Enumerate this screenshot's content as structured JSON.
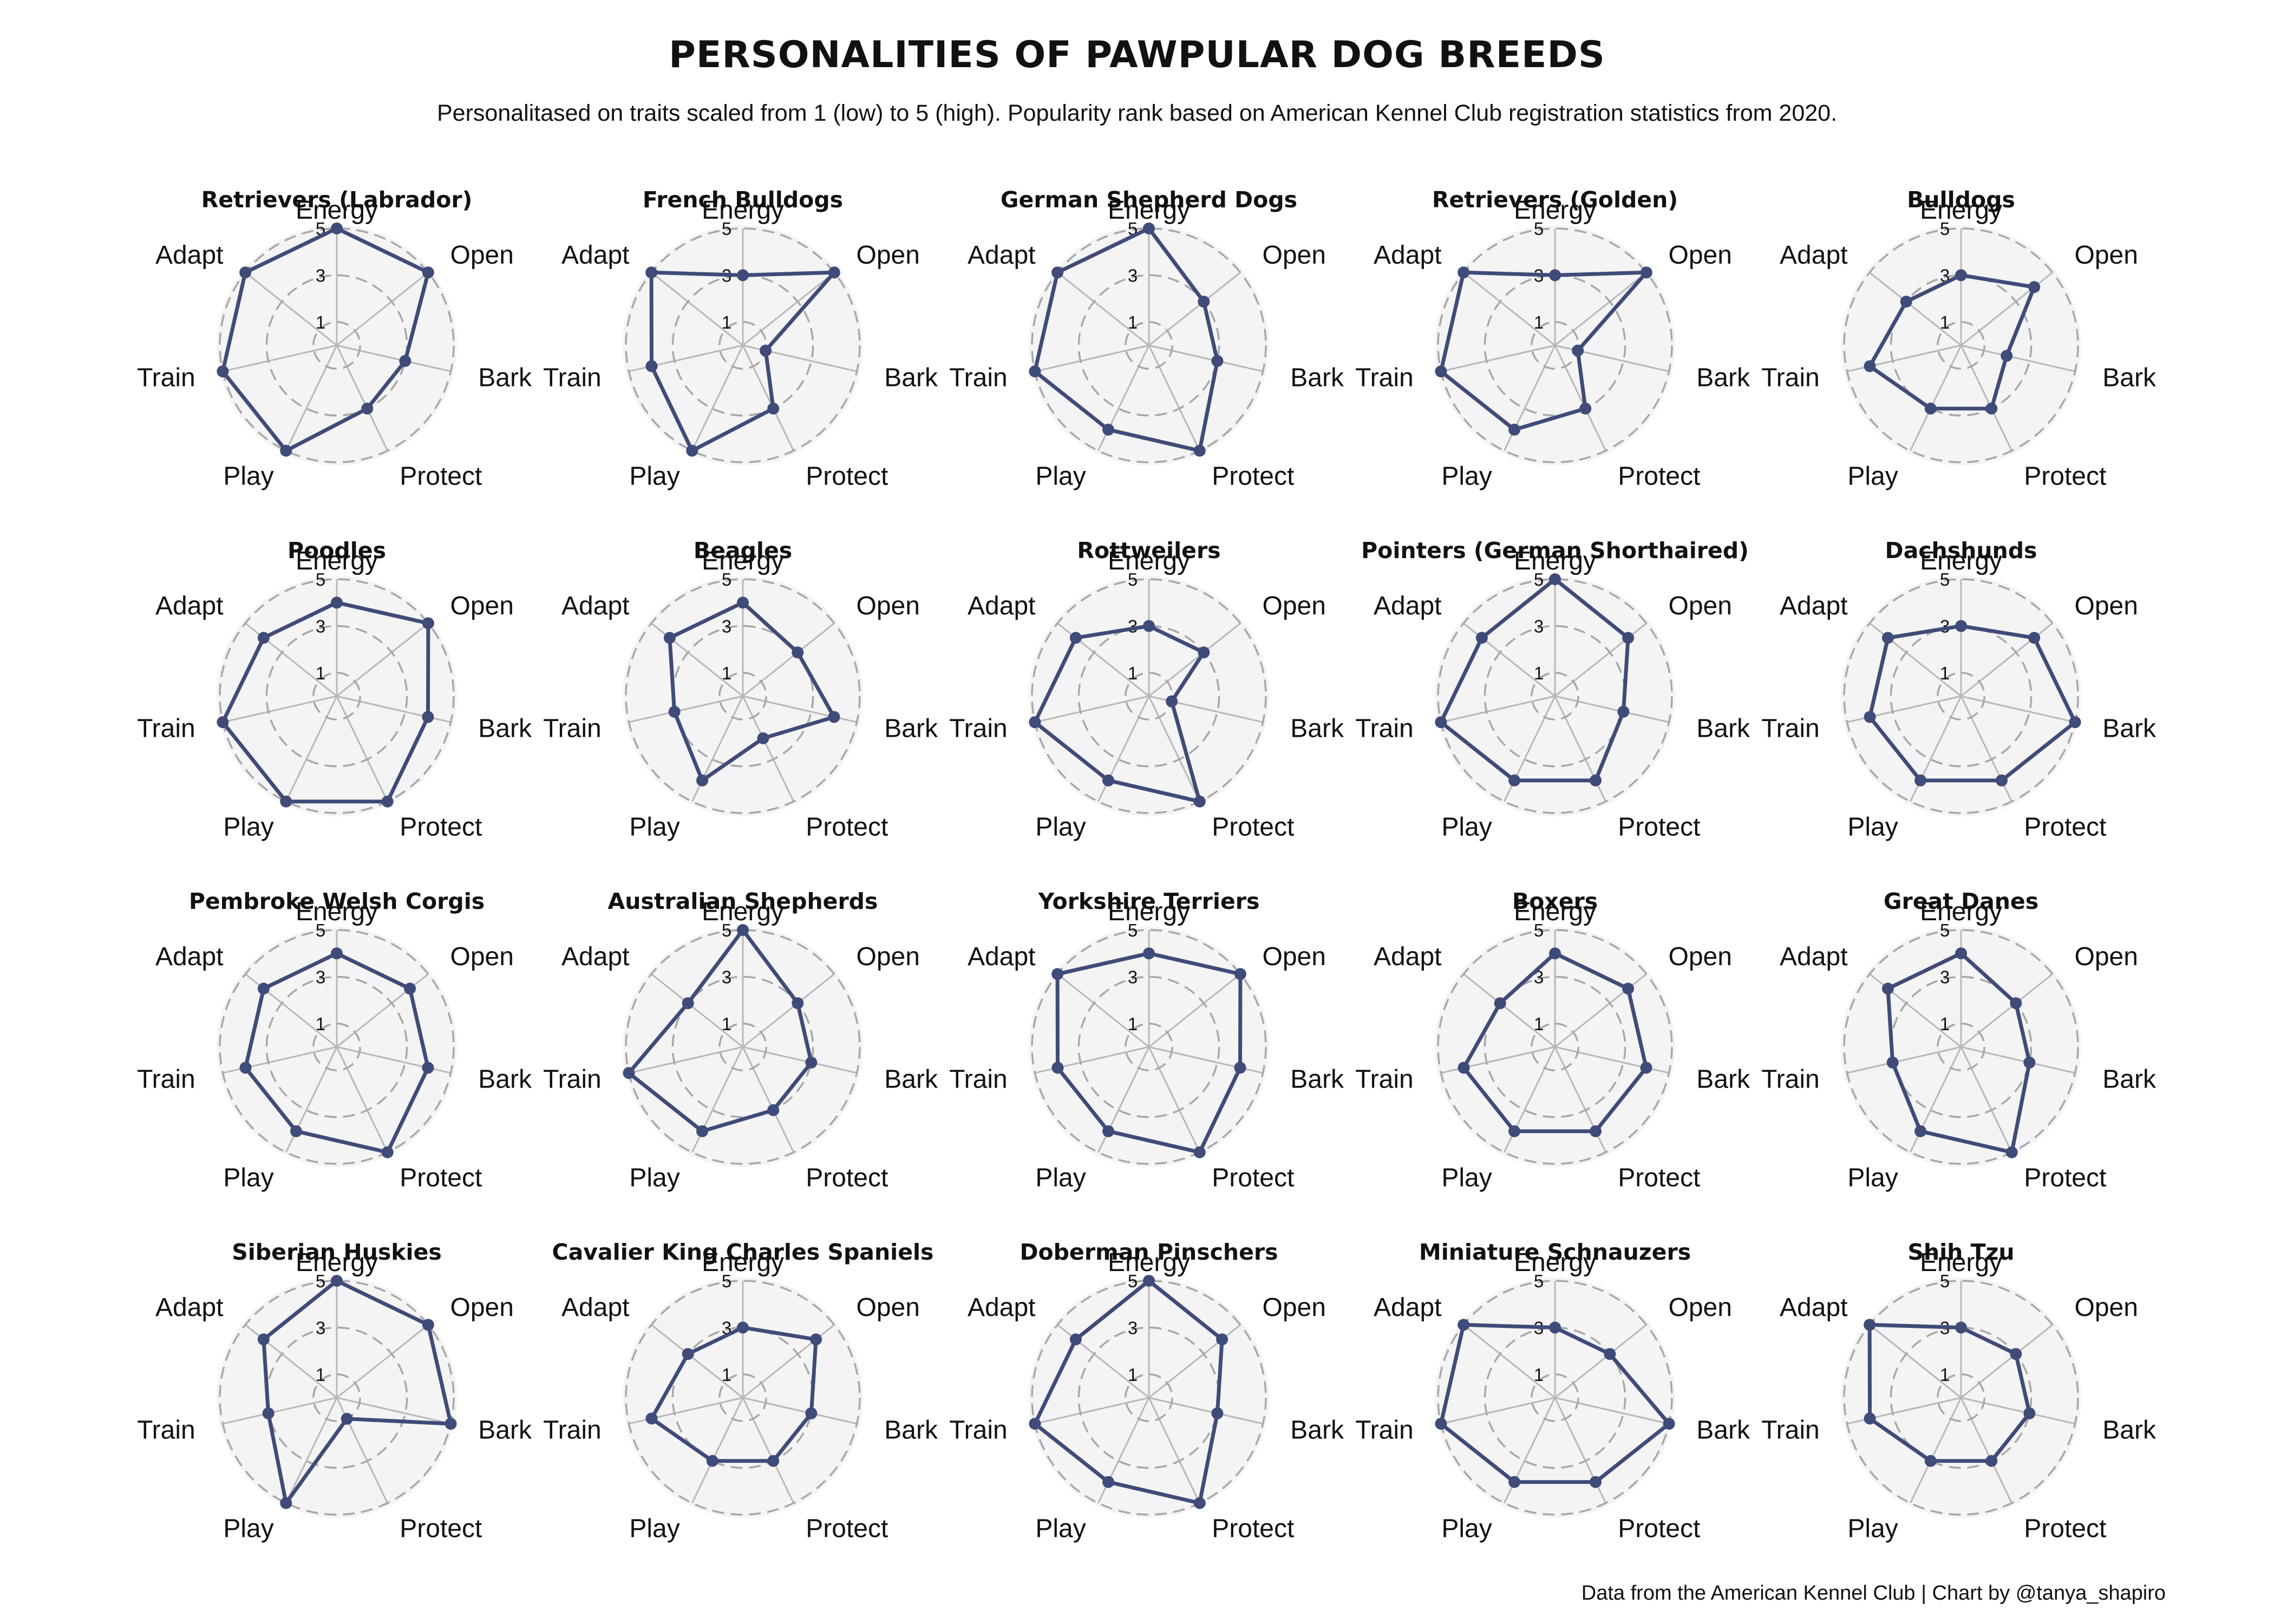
{
  "header": {
    "title": "PERSONALITIES OF PAWPULAR DOG BREEDS",
    "subtitle": "Personalitased on traits scaled from 1 (low) to 5 (high). Popularity rank based on American Kennel Club registration statistics from 2020."
  },
  "footer": {
    "caption": "Data from the American Kennel Club | Chart by @tanya_shapiro"
  },
  "colors": {
    "series": "#3f4b78",
    "panel_background": "#f4f4f4",
    "grid_circle": "#a8a8a8",
    "spoke": "#b8b8b8"
  },
  "chart_data": {
    "type": "radar",
    "axes": [
      "Energy",
      "Open",
      "Bark",
      "Protect",
      "Play",
      "Train",
      "Adapt"
    ],
    "scale": [
      1,
      5
    ],
    "ticks": [
      "1",
      "3",
      "5"
    ],
    "layout": "4 rows x 5 columns, ordered by popularity rank",
    "charts": [
      {
        "title": "Retrievers (Labrador)",
        "values": [
          5,
          5,
          3,
          3,
          5,
          5,
          5
        ]
      },
      {
        "title": "French Bulldogs",
        "values": [
          3,
          5,
          1,
          3,
          5,
          4,
          5
        ]
      },
      {
        "title": "German Shepherd Dogs",
        "values": [
          5,
          3,
          3,
          5,
          4,
          5,
          5
        ]
      },
      {
        "title": "Retrievers (Golden)",
        "values": [
          3,
          5,
          1,
          3,
          4,
          5,
          5
        ]
      },
      {
        "title": "Bulldogs",
        "values": [
          3,
          4,
          2,
          3,
          3,
          4,
          3
        ]
      },
      {
        "title": "Poodles",
        "values": [
          4,
          5,
          4,
          5,
          5,
          5,
          4
        ]
      },
      {
        "title": "Beagles",
        "values": [
          4,
          3,
          4,
          2,
          4,
          3,
          4
        ]
      },
      {
        "title": "Rottweilers",
        "values": [
          3,
          3,
          1,
          5,
          4,
          5,
          4
        ]
      },
      {
        "title": "Pointers (German Shorthaired)",
        "values": [
          5,
          4,
          3,
          4,
          4,
          5,
          4
        ]
      },
      {
        "title": "Dachshunds",
        "values": [
          3,
          4,
          5,
          4,
          4,
          4,
          4
        ]
      },
      {
        "title": "Pembroke Welsh Corgis",
        "values": [
          4,
          4,
          4,
          5,
          4,
          4,
          4
        ]
      },
      {
        "title": "Australian Shepherds",
        "values": [
          5,
          3,
          3,
          3,
          4,
          5,
          3
        ]
      },
      {
        "title": "Yorkshire Terriers",
        "values": [
          4,
          5,
          4,
          5,
          4,
          4,
          5
        ]
      },
      {
        "title": "Boxers",
        "values": [
          4,
          4,
          4,
          4,
          4,
          4,
          3
        ]
      },
      {
        "title": "Great Danes",
        "values": [
          4,
          3,
          3,
          5,
          4,
          3,
          4
        ]
      },
      {
        "title": "Siberian Huskies",
        "values": [
          5,
          5,
          5,
          1,
          5,
          3,
          4
        ]
      },
      {
        "title": "Cavalier King Charles Spaniels",
        "values": [
          3,
          4,
          3,
          3,
          3,
          4,
          3
        ]
      },
      {
        "title": "Doberman Pinschers",
        "values": [
          5,
          4,
          3,
          5,
          4,
          5,
          4
        ]
      },
      {
        "title": "Miniature Schnauzers",
        "values": [
          3,
          3,
          5,
          4,
          4,
          5,
          5
        ]
      },
      {
        "title": "Shih Tzu",
        "values": [
          3,
          3,
          3,
          3,
          3,
          4,
          5
        ]
      }
    ]
  }
}
